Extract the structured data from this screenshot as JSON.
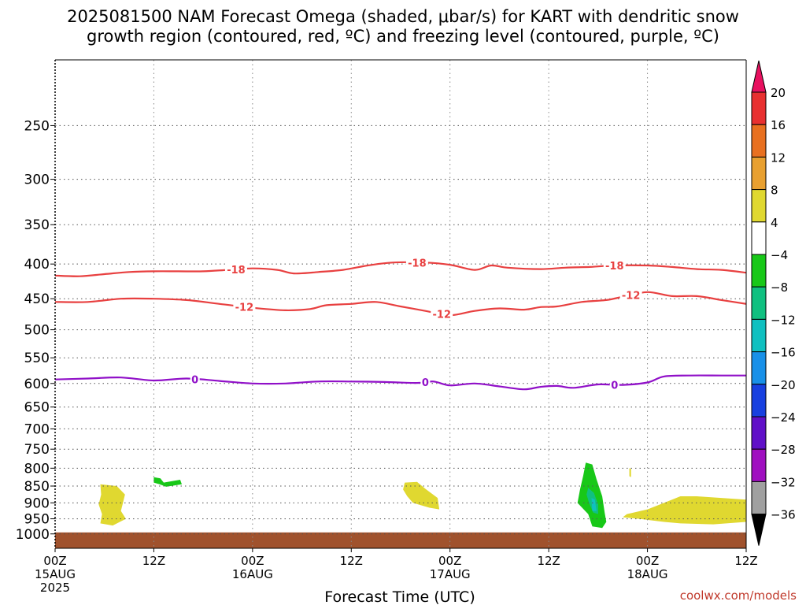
{
  "chart_data": {
    "type": "heatmap",
    "title_line1": "2025081500 NAM Forecast Omega (shaded, μbar/s) for KART with dendritic snow",
    "title_line2": "growth region (contoured, red, ºC) and freezing level (contoured, purple, ºC)",
    "xlabel": "Forecast Time (UTC)",
    "credit": "coolwx.com/models",
    "xlim_hours": [
      0,
      84
    ],
    "x_ticks": [
      {
        "hour": 0,
        "label": "00Z",
        "sub1": "15AUG",
        "sub2": "2025"
      },
      {
        "hour": 12,
        "label": "12Z",
        "sub1": "",
        "sub2": ""
      },
      {
        "hour": 24,
        "label": "00Z",
        "sub1": "16AUG",
        "sub2": ""
      },
      {
        "hour": 36,
        "label": "12Z",
        "sub1": "",
        "sub2": ""
      },
      {
        "hour": 48,
        "label": "00Z",
        "sub1": "17AUG",
        "sub2": ""
      },
      {
        "hour": 60,
        "label": "12Z",
        "sub1": "",
        "sub2": ""
      },
      {
        "hour": 72,
        "label": "00Z",
        "sub1": "18AUG",
        "sub2": ""
      },
      {
        "hour": 84,
        "label": "12Z",
        "sub1": "",
        "sub2": ""
      }
    ],
    "y_scale": "log-pressure",
    "ylim_hpa": [
      1050,
      200
    ],
    "y_ticks": [
      250,
      300,
      350,
      400,
      450,
      500,
      550,
      600,
      650,
      700,
      750,
      800,
      850,
      900,
      950,
      1000
    ],
    "grid": true,
    "colorbar": {
      "labels": [
        "20",
        "16",
        "12",
        "8",
        "4",
        "−4",
        "−8",
        "−12",
        "−16",
        "−20",
        "−24",
        "−28",
        "−32",
        "−36"
      ],
      "colors": [
        "#e8105f",
        "#e83030",
        "#e87020",
        "#e8a030",
        "#e0d830",
        "#ffffff",
        "#18c818",
        "#10c080",
        "#10c0c0",
        "#1890e8",
        "#1840e0",
        "#6010c8",
        "#a010c0",
        "#a0a0a0",
        "#000000"
      ]
    },
    "contours": [
      {
        "value": -18,
        "label": "-18",
        "color": "#e84040",
        "points": [
          [
            0,
            416
          ],
          [
            3,
            417
          ],
          [
            6,
            414
          ],
          [
            9,
            411
          ],
          [
            12,
            410
          ],
          [
            15,
            410
          ],
          [
            18,
            410
          ],
          [
            21,
            408
          ],
          [
            24,
            406
          ],
          [
            27,
            408
          ],
          [
            29,
            413
          ],
          [
            32,
            411
          ],
          [
            35,
            408
          ],
          [
            38,
            402
          ],
          [
            41,
            398
          ],
          [
            45,
            398
          ],
          [
            48,
            401
          ],
          [
            51,
            408
          ],
          [
            53,
            402
          ],
          [
            55,
            405
          ],
          [
            59,
            407
          ],
          [
            62,
            405
          ],
          [
            65,
            404
          ],
          [
            68,
            402
          ],
          [
            72,
            402
          ],
          [
            75,
            404
          ],
          [
            78,
            407
          ],
          [
            81,
            408
          ],
          [
            84,
            412
          ]
        ],
        "label_hours": [
          22,
          44,
          68
        ]
      },
      {
        "value": -12,
        "label": "-12",
        "color": "#e84040",
        "points": [
          [
            0,
            455
          ],
          [
            4,
            455
          ],
          [
            8,
            450
          ],
          [
            12,
            450
          ],
          [
            16,
            452
          ],
          [
            20,
            458
          ],
          [
            24,
            464
          ],
          [
            28,
            468
          ],
          [
            31,
            466
          ],
          [
            33,
            460
          ],
          [
            36,
            458
          ],
          [
            39,
            455
          ],
          [
            42,
            462
          ],
          [
            45,
            469
          ],
          [
            48,
            476
          ],
          [
            51,
            469
          ],
          [
            54,
            465
          ],
          [
            57,
            467
          ],
          [
            59,
            463
          ],
          [
            61,
            462
          ],
          [
            64,
            455
          ],
          [
            67,
            452
          ],
          [
            69,
            447
          ],
          [
            72,
            440
          ],
          [
            75,
            446
          ],
          [
            78,
            446
          ],
          [
            81,
            452
          ],
          [
            84,
            458
          ]
        ],
        "label_hours": [
          23,
          47,
          70
        ]
      },
      {
        "value": 0,
        "label": "0",
        "color": "#9010c8",
        "points": [
          [
            0,
            592
          ],
          [
            4,
            590
          ],
          [
            8,
            588
          ],
          [
            12,
            594
          ],
          [
            16,
            590
          ],
          [
            20,
            595
          ],
          [
            24,
            600
          ],
          [
            28,
            600
          ],
          [
            32,
            596
          ],
          [
            36,
            596
          ],
          [
            40,
            597
          ],
          [
            44,
            599
          ],
          [
            46,
            596
          ],
          [
            48,
            604
          ],
          [
            51,
            600
          ],
          [
            54,
            606
          ],
          [
            57,
            612
          ],
          [
            59,
            607
          ],
          [
            61,
            605
          ],
          [
            63,
            609
          ],
          [
            66,
            602
          ],
          [
            69,
            603
          ],
          [
            72,
            598
          ],
          [
            74,
            586
          ],
          [
            77,
            584
          ],
          [
            81,
            584
          ],
          [
            84,
            584
          ]
        ],
        "label_hours": [
          17,
          45,
          68
        ]
      }
    ],
    "shaded_regions": [
      {
        "color": "#e0d830",
        "category": "4 to 8",
        "points": [
          [
            5.5,
            845
          ],
          [
            7.5,
            850
          ],
          [
            8.5,
            875
          ],
          [
            8.2,
            905
          ],
          [
            8.0,
            925
          ],
          [
            8.6,
            950
          ],
          [
            7.0,
            972
          ],
          [
            5.5,
            965
          ],
          [
            5.7,
            935
          ],
          [
            5.3,
            905
          ],
          [
            5.6,
            875
          ]
        ]
      },
      {
        "color": "#18c818",
        "category": "-8 to -4",
        "points": [
          [
            12.0,
            825
          ],
          [
            12.8,
            828
          ],
          [
            13.2,
            840
          ],
          [
            14.5,
            835
          ],
          [
            15.2,
            832
          ],
          [
            15.4,
            845
          ],
          [
            13.5,
            852
          ],
          [
            12.7,
            845
          ],
          [
            12.0,
            840
          ]
        ]
      },
      {
        "color": "#e0d830",
        "category": "4 to 8",
        "points": [
          [
            42.5,
            840
          ],
          [
            44.0,
            838
          ],
          [
            45.0,
            858
          ],
          [
            46.5,
            885
          ],
          [
            46.7,
            920
          ],
          [
            45.5,
            915
          ],
          [
            43.5,
            900
          ],
          [
            42.8,
            880
          ],
          [
            42.3,
            860
          ]
        ]
      },
      {
        "color": "#18c818",
        "category": "-8 to -4",
        "points": [
          [
            64.5,
            785
          ],
          [
            65.3,
            790
          ],
          [
            65.8,
            830
          ],
          [
            66.5,
            880
          ],
          [
            66.8,
            930
          ],
          [
            67.0,
            960
          ],
          [
            66.5,
            980
          ],
          [
            65.3,
            975
          ],
          [
            64.8,
            935
          ],
          [
            63.5,
            900
          ],
          [
            63.8,
            860
          ],
          [
            64.2,
            820
          ]
        ]
      },
      {
        "color": "#10c080",
        "category": "-12 to -8",
        "points": [
          [
            64.8,
            855
          ],
          [
            65.5,
            870
          ],
          [
            66.0,
            905
          ],
          [
            66.0,
            935
          ],
          [
            65.4,
            930
          ],
          [
            64.9,
            900
          ],
          [
            64.6,
            875
          ]
        ]
      },
      {
        "color": "#10c0c0",
        "category": "-16 to -12",
        "points": [
          [
            65.2,
            885
          ],
          [
            65.6,
            890
          ],
          [
            65.8,
            925
          ],
          [
            65.3,
            925
          ]
        ]
      },
      {
        "color": "#e0d830",
        "category": "4 to 8",
        "points": [
          [
            69.8,
            800
          ],
          [
            70.0,
            802
          ],
          [
            70.0,
            825
          ],
          [
            69.8,
            822
          ]
        ]
      },
      {
        "color": "#e0d830",
        "category": "4 to 8",
        "points": [
          [
            69.5,
            935
          ],
          [
            72,
            920
          ],
          [
            74,
            900
          ],
          [
            76,
            880
          ],
          [
            78,
            880
          ],
          [
            81,
            885
          ],
          [
            84,
            890
          ],
          [
            84,
            960
          ],
          [
            80,
            968
          ],
          [
            76,
            965
          ],
          [
            74,
            960
          ],
          [
            71,
            950
          ],
          [
            69,
            945
          ]
        ]
      }
    ],
    "ground": {
      "color": "#a0522d",
      "top_hpa": 995
    }
  }
}
